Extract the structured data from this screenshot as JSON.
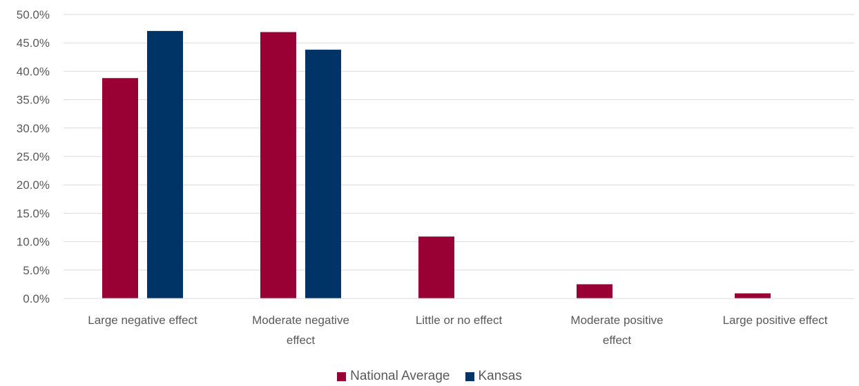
{
  "chart_data": {
    "type": "bar",
    "categories": [
      [
        "Large negative effect"
      ],
      [
        "Moderate negative",
        "effect"
      ],
      [
        "Little or no effect"
      ],
      [
        "Moderate positive",
        "effect"
      ],
      [
        "Large positive effect"
      ]
    ],
    "series": [
      {
        "name": "National Average",
        "color": "#990033",
        "values": [
          38.8,
          46.9,
          10.9,
          2.5,
          0.9
        ]
      },
      {
        "name": "Kansas",
        "color": "#003366",
        "values": [
          47.1,
          43.8,
          null,
          null,
          null
        ]
      }
    ],
    "y_ticks": [
      "0.0%",
      "5.0%",
      "10.0%",
      "15.0%",
      "20.0%",
      "25.0%",
      "30.0%",
      "35.0%",
      "40.0%",
      "45.0%",
      "50.0%"
    ],
    "ylim": [
      0,
      50
    ],
    "grid": true,
    "legend_position": "bottom"
  }
}
